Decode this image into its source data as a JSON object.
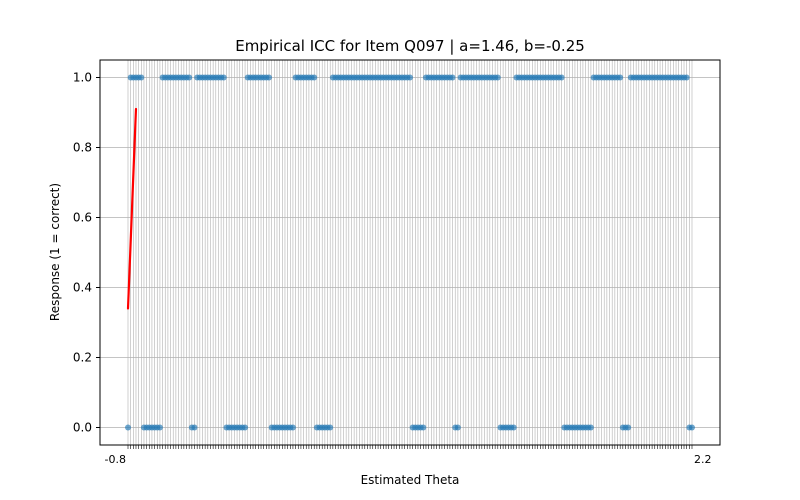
{
  "chart_data": {
    "type": "scatter",
    "title": "Empirical ICC for Item Q097 | a=1.46, b=-0.25",
    "xlabel": "Estimated Theta",
    "ylabel": "Response (1 = correct)",
    "ylim": [
      -0.05,
      1.05
    ],
    "yticks": [
      0.0,
      0.2,
      0.4,
      0.6,
      0.8,
      1.0
    ],
    "ytick_labels": [
      "0.0",
      "0.2",
      "0.4",
      "0.6",
      "0.8",
      "1.0"
    ],
    "x_start_label": "-0.8",
    "x_end_label": "2.2",
    "grid": true,
    "n_observations": 213,
    "correct_index_ranges": [
      [
        1,
        5
      ],
      [
        13,
        23
      ],
      [
        26,
        36
      ],
      [
        45,
        53
      ],
      [
        63,
        70
      ],
      [
        77,
        106
      ],
      [
        112,
        122
      ],
      [
        125,
        139
      ],
      [
        146,
        163
      ],
      [
        175,
        185
      ],
      [
        189,
        210
      ]
    ],
    "points_color": "#1f77b4",
    "curve": {
      "color": "#ff0000",
      "x_index": [
        0,
        3
      ],
      "y": [
        0.34,
        0.91
      ]
    },
    "colors": {
      "points": "#1f77b4",
      "curve": "#ff0000",
      "grid": "#b0b0b0"
    }
  }
}
